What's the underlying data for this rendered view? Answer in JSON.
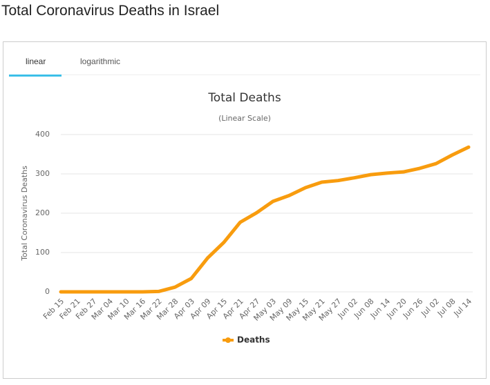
{
  "page_title": "Total Coronavirus Deaths in Israel",
  "tabs": [
    "linear",
    "logarithmic"
  ],
  "chart_data": {
    "type": "line",
    "title": "Total Deaths",
    "subtitle": "(Linear Scale)",
    "y_label": "Total Coronavirus Deaths",
    "categories": [
      "Feb 15",
      "Feb 21",
      "Feb 27",
      "Mar 04",
      "Mar 10",
      "Mar 16",
      "Mar 22",
      "Mar 28",
      "Apr 03",
      "Apr 09",
      "Apr 15",
      "Apr 21",
      "Apr 27",
      "May 03",
      "May 09",
      "May 15",
      "May 21",
      "May 27",
      "Jun 02",
      "Jun 08",
      "Jun 14",
      "Jun 20",
      "Jun 26",
      "Jul 02",
      "Jul 08",
      "Jul 14"
    ],
    "series": [
      {
        "name": "Deaths",
        "color": "#f89c0e",
        "values": [
          0,
          0,
          0,
          0,
          0,
          0,
          1,
          12,
          34,
          86,
          126,
          177,
          201,
          230,
          245,
          265,
          279,
          283,
          290,
          298,
          302,
          305,
          314,
          326,
          348,
          368
        ]
      }
    ],
    "ylim": [
      0,
      400
    ],
    "yticks": [
      0,
      100,
      200,
      300,
      400
    ],
    "grid": true,
    "legend": "bottom"
  }
}
